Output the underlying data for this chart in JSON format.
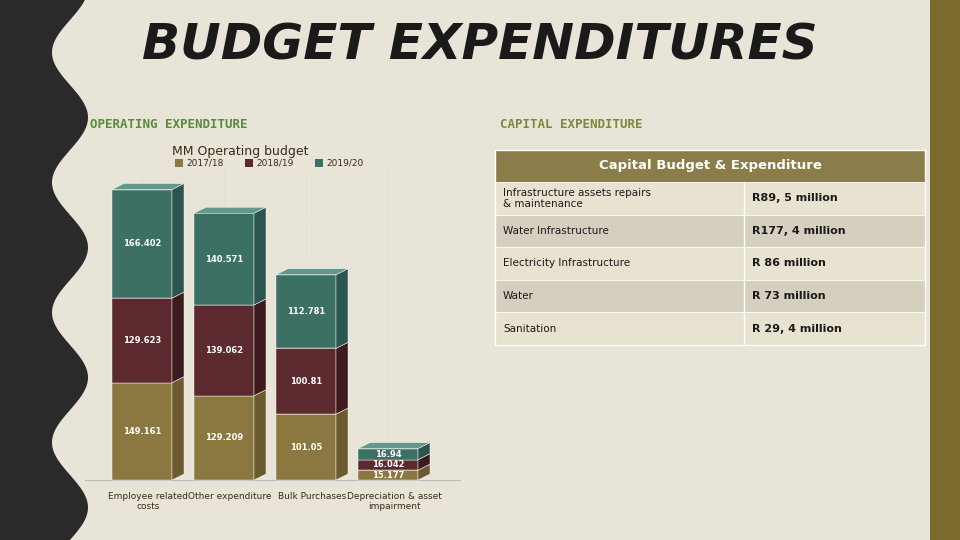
{
  "title": "BUDGET EXPENDITURES",
  "title_fontsize": 36,
  "bg_color": "#e8e5d8",
  "op_expenditure_label": "OPERATING EXPENDITURE",
  "cap_expenditure_label": "CAPITAL EXPENDITURE",
  "op_label_color": "#5a8a3a",
  "cap_label_color": "#7a8a3a",
  "chart_title": "MM Operating budget",
  "legend_labels": [
    "2017/18",
    "2018/19",
    "2019/20"
  ],
  "categories": [
    "Employee related\ncosts",
    "Other expenditure",
    "Bulk Purchases",
    "Depreciation & asset\nimpairment"
  ],
  "bar_data_2017": [
    149.161,
    129.209,
    101.05,
    15.177
  ],
  "bar_data_2018": [
    129.623,
    139.062,
    100.81,
    16.042
  ],
  "bar_data_2019": [
    166.402,
    140.571,
    112.781,
    16.94
  ],
  "bar_labels_2017": [
    "149.161",
    "129.209",
    "101.05",
    "15.177"
  ],
  "bar_labels_2018": [
    "129.623",
    "139.062",
    "100.81",
    "16.042"
  ],
  "bar_labels_2019": [
    "166.402",
    "140.571",
    "112.781",
    "16.94"
  ],
  "color_2017": "#8b7840",
  "color_2018": "#5c2a2e",
  "color_2019": "#3d7065",
  "color_2017_side": "#6b5a30",
  "color_2018_side": "#3c1a1e",
  "color_2019_side": "#2d5550",
  "capital_header": "Capital Budget & Expenditure",
  "capital_header_bg": "#8b7d4a",
  "capital_rows": [
    [
      "Infrastructure assets repairs\n& maintenance",
      "R89, 5 million"
    ],
    [
      "Water Infrastructure",
      "R177, 4 million"
    ],
    [
      "Electricity Infrastructure",
      "R 86 million"
    ],
    [
      "Water",
      "R 73 million"
    ],
    [
      "Sanitation",
      "R 29, 4 million"
    ]
  ],
  "capital_row_bg_odd": "#e8e2d0",
  "capital_row_bg_even": "#d5cfc0",
  "black_sidebar_color": "#2a2a2a",
  "gold_sidebar_color": "#7a6a2e"
}
